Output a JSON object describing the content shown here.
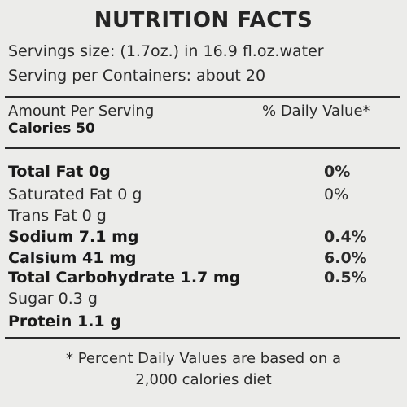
{
  "title": "NUTRITION FACTS",
  "serving_size": "Servings size: (1.7oz.) in 16.9 fl.oz.water",
  "servings_per_container": "Serving per Containers: about 20",
  "amount_per_serving": "Amount Per Serving",
  "daily_value_header": "% Daily Value*",
  "calories": "Calories 50",
  "nutrients": [
    {
      "label": "Total Fat 0g",
      "dv": "0%"
    },
    {
      "label": "Saturated Fat 0 g",
      "dv": "0%"
    },
    {
      "label": "Trans Fat 0 g",
      "dv": ""
    },
    {
      "label": "Sodium 7.1 mg",
      "dv": "0.4%"
    },
    {
      "label": "Calsium 41 mg",
      "dv": "6.0%"
    },
    {
      "label": "Total Carbohydrate 1.7 mg",
      "dv": "0.5%"
    },
    {
      "label": "Sugar 0.3 g",
      "dv": ""
    },
    {
      "label": "Protein 1.1 g",
      "dv": ""
    }
  ],
  "footnote_line1": "* Percent Daily Values are based on a",
  "footnote_line2": "2,000 calories diet"
}
